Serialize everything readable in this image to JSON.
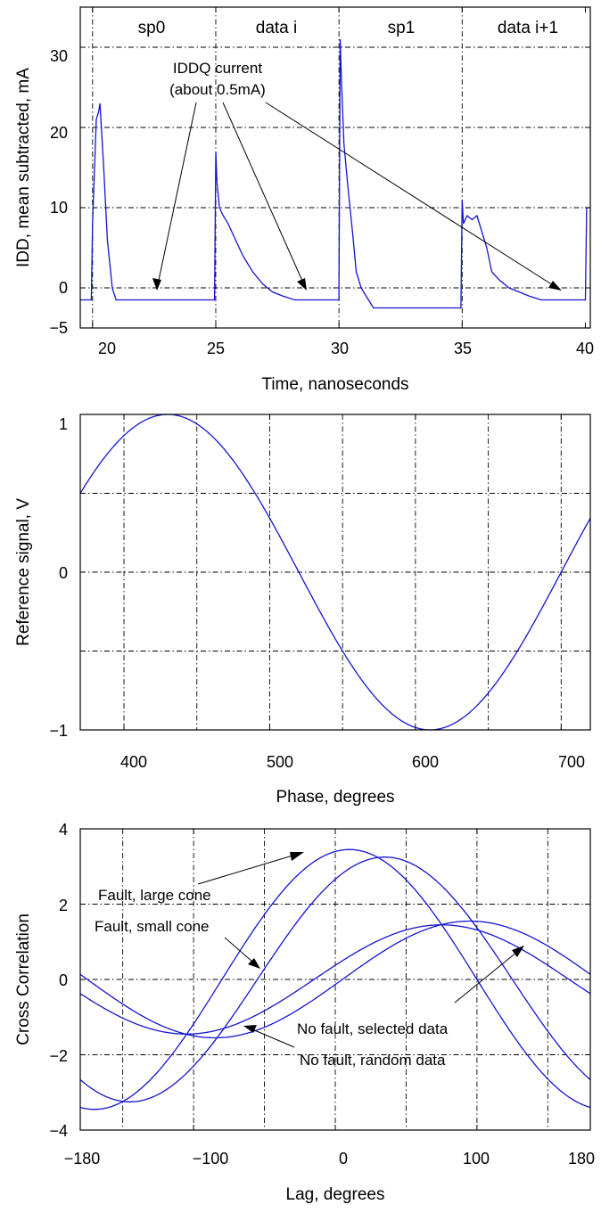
{
  "chart_data": [
    {
      "type": "line",
      "title": "",
      "xlabel": "Time, nanoseconds",
      "ylabel": "IDD, mean subtracted, mA",
      "xlim": [
        19.5,
        40.2
      ],
      "ylim": [
        -5,
        35
      ],
      "xticks": [
        20,
        25,
        30,
        35,
        40
      ],
      "xtick_labels": [
        "20",
        "25",
        "30",
        "35",
        "40"
      ],
      "yticks": [
        -5,
        0,
        10,
        20,
        30
      ],
      "ytick_labels": [
        "−5",
        "0",
        "10",
        "20",
        "30"
      ],
      "grid": true,
      "segment_labels": [
        "sp0",
        "data i",
        "sp1",
        "data i+1"
      ],
      "annotation": {
        "line1": "IDDQ current",
        "line2": "(about 0.5mA)"
      },
      "series": [
        {
          "color": "#1414d2",
          "x": [
            19.5,
            19.95,
            20.0,
            20.15,
            20.25,
            20.3,
            20.45,
            20.6,
            20.8,
            20.95,
            21.2,
            22.0,
            24.95,
            25.0,
            25.05,
            25.15,
            25.3,
            25.5,
            25.8,
            26.1,
            26.5,
            26.9,
            27.3,
            27.7,
            28.2,
            28.7,
            30.0,
            30.05,
            30.1,
            30.2,
            30.35,
            30.55,
            30.7,
            30.9,
            31.1,
            31.4,
            32.0,
            34.95,
            35.0,
            35.05,
            35.2,
            35.4,
            35.6,
            35.8,
            36.0,
            36.2,
            36.5,
            36.9,
            37.3,
            37.7,
            38.2,
            38.7,
            40.0,
            40.05,
            40.2
          ],
          "y": [
            -1.5,
            -1.5,
            8,
            21,
            22,
            23,
            15,
            6,
            0,
            -1.5,
            -1.5,
            -1.5,
            -1.5,
            17,
            13,
            10,
            9,
            8,
            6,
            4,
            2,
            0.5,
            -0.5,
            -1,
            -1.5,
            -1.5,
            -1.5,
            31,
            26,
            18,
            13,
            7,
            2,
            0,
            -1,
            -2.5,
            -2.5,
            -2.5,
            11,
            8,
            9,
            8.5,
            9,
            7,
            5,
            2,
            1,
            0,
            -0.5,
            -1,
            -1.5,
            -1.5,
            -1.5,
            10,
            10
          ]
        }
      ]
    },
    {
      "type": "line",
      "title": "",
      "xlabel": "Phase, degrees",
      "ylabel": "Reference signal, V",
      "xlim": [
        370,
        720
      ],
      "ylim": [
        -1,
        1
      ],
      "xticks": [
        400,
        500,
        600,
        700
      ],
      "xtick_labels": [
        "400",
        "500",
        "600",
        "700"
      ],
      "yticks": [
        -1,
        0,
        1
      ],
      "ytick_labels": [
        "−1",
        "0",
        "1"
      ],
      "grid": true,
      "series": [
        {
          "color": "#1414d2",
          "function": "sin",
          "amplitude": 1,
          "peak_at_deg": 430,
          "period_deg": 360
        }
      ]
    },
    {
      "type": "line",
      "title": "",
      "xlabel": "Lag, degrees",
      "ylabel": "Cross Correlation",
      "xlim": [
        -180,
        180
      ],
      "ylim": [
        -4,
        4
      ],
      "xticks": [
        -180,
        -100,
        0,
        100,
        180
      ],
      "xtick_labels": [
        "−180",
        "−100",
        "0",
        "100",
        "180"
      ],
      "yticks": [
        -4,
        -2,
        0,
        2,
        4
      ],
      "ytick_labels": [
        "−4",
        "−2",
        "0",
        "2",
        "4"
      ],
      "grid": true,
      "annotations": [
        "Fault, large cone",
        "Fault, small cone",
        "No fault, selected data",
        "No fault, random data"
      ],
      "series": [
        {
          "color": "#1414d2",
          "amplitude": 3.45,
          "peak_at_deg": 10,
          "offset": 0
        },
        {
          "color": "#1414d2",
          "amplitude": 3.25,
          "peak_at_deg": 35,
          "offset": 0
        },
        {
          "color": "#1414d2",
          "amplitude": 1.55,
          "peak_at_deg": 95,
          "offset": 0
        },
        {
          "color": "#1414d2",
          "amplitude": 1.45,
          "peak_at_deg": 75,
          "offset": 0
        }
      ]
    }
  ]
}
